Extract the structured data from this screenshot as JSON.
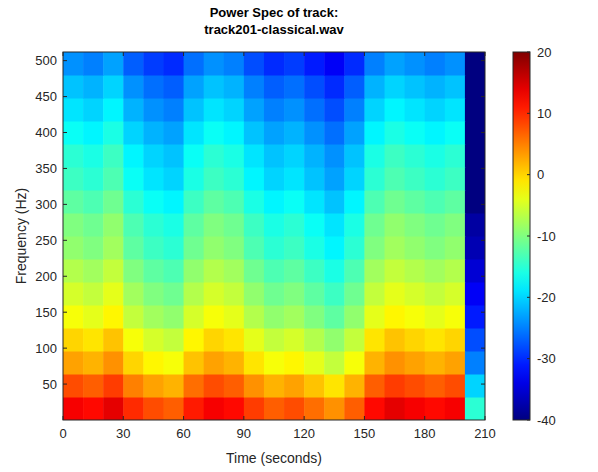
{
  "chart_data": {
    "type": "heatmap",
    "title": "Power Spec of track:",
    "subtitle": "track201-classical.wav",
    "x_label": "Time (seconds)",
    "y_label": "Frequency (Hz)",
    "xlim": [
      0,
      210
    ],
    "xticks": [
      0,
      30,
      60,
      90,
      120,
      150,
      180,
      210
    ],
    "ylim": [
      0,
      512
    ],
    "yticks": [
      50,
      100,
      150,
      200,
      250,
      300,
      350,
      400,
      450,
      500
    ],
    "x_bins": [
      0,
      10,
      20,
      30,
      40,
      50,
      60,
      70,
      80,
      90,
      100,
      110,
      120,
      130,
      140,
      150,
      160,
      170,
      180,
      190,
      200,
      210
    ],
    "y_bins": [
      0,
      32,
      64,
      96,
      128,
      160,
      192,
      224,
      256,
      288,
      320,
      352,
      384,
      416,
      448,
      480,
      512
    ],
    "cells": [
      [
        13,
        12,
        14,
        10,
        8,
        7,
        11,
        13,
        12,
        9,
        7,
        8,
        6,
        4,
        7,
        12,
        14,
        13,
        12,
        13,
        -15
      ],
      [
        8,
        7,
        9,
        5,
        3,
        2,
        6,
        8,
        7,
        4,
        2,
        3,
        1,
        -1,
        2,
        7,
        9,
        8,
        7,
        8,
        -20
      ],
      [
        3,
        2,
        4,
        0,
        -2,
        -3,
        1,
        3,
        2,
        -1,
        -3,
        -2,
        -4,
        -6,
        -3,
        2,
        4,
        3,
        2,
        3,
        -25
      ],
      [
        0,
        -1,
        1,
        -3,
        -5,
        -6,
        -2,
        0,
        -1,
        -4,
        -6,
        -5,
        -7,
        -9,
        -6,
        -1,
        1,
        0,
        -1,
        0,
        -28
      ],
      [
        -3,
        -4,
        -2,
        -6,
        -8,
        -9,
        -5,
        -3,
        -4,
        -7,
        -9,
        -8,
        -10,
        -12,
        -9,
        -4,
        -2,
        -3,
        -4,
        -3,
        -31
      ],
      [
        -5,
        -6,
        -4,
        -8,
        -10,
        -11,
        -7,
        -5,
        -6,
        -9,
        -11,
        -10,
        -12,
        -14,
        -11,
        -6,
        -4,
        -5,
        -6,
        -5,
        -33
      ],
      [
        -7,
        -8,
        -6,
        -10,
        -12,
        -13,
        -9,
        -7,
        -8,
        -11,
        -13,
        -12,
        -14,
        -16,
        -13,
        -8,
        -6,
        -7,
        -8,
        -7,
        -35
      ],
      [
        -9,
        -10,
        -8,
        -12,
        -14,
        -15,
        -11,
        -9,
        -10,
        -13,
        -15,
        -14,
        -16,
        -18,
        -15,
        -10,
        -8,
        -9,
        -10,
        -9,
        -37
      ],
      [
        -10,
        -11,
        -9,
        -13,
        -15,
        -16,
        -12,
        -10,
        -11,
        -14,
        -16,
        -15,
        -17,
        -19,
        -16,
        -11,
        -9,
        -10,
        -11,
        -10,
        -38
      ],
      [
        -12,
        -13,
        -11,
        -15,
        -17,
        -18,
        -14,
        -12,
        -13,
        -16,
        -18,
        -17,
        -19,
        -21,
        -18,
        -13,
        -11,
        -12,
        -13,
        -12,
        -40
      ],
      [
        -14,
        -15,
        -13,
        -17,
        -19,
        -20,
        -16,
        -14,
        -15,
        -18,
        -20,
        -19,
        -21,
        -23,
        -20,
        -15,
        -13,
        -14,
        -15,
        -14,
        -40
      ],
      [
        -15,
        -16,
        -14,
        -18,
        -20,
        -21,
        -17,
        -15,
        -16,
        -19,
        -21,
        -20,
        -22,
        -24,
        -21,
        -16,
        -14,
        -15,
        -16,
        -15,
        -40
      ],
      [
        -17,
        -18,
        -16,
        -20,
        -22,
        -23,
        -19,
        -17,
        -18,
        -21,
        -23,
        -22,
        -24,
        -26,
        -23,
        -18,
        -16,
        -17,
        -18,
        -17,
        -40
      ],
      [
        -19,
        -20,
        -18,
        -22,
        -24,
        -25,
        -21,
        -19,
        -20,
        -23,
        -25,
        -24,
        -26,
        -28,
        -25,
        -20,
        -18,
        -19,
        -20,
        -19,
        -40
      ],
      [
        -21,
        -22,
        -20,
        -24,
        -26,
        -27,
        -23,
        -21,
        -22,
        -25,
        -27,
        -26,
        -28,
        -30,
        -27,
        -22,
        -20,
        -21,
        -22,
        -21,
        -40
      ],
      [
        -24,
        -25,
        -23,
        -27,
        -29,
        -30,
        -26,
        -24,
        -25,
        -28,
        -30,
        -29,
        -31,
        -33,
        -30,
        -25,
        -23,
        -24,
        -25,
        -24,
        -40
      ]
    ],
    "color_range": [
      -40,
      20
    ],
    "color_ticks": [
      -40,
      -30,
      -20,
      -10,
      0,
      10,
      20
    ]
  }
}
